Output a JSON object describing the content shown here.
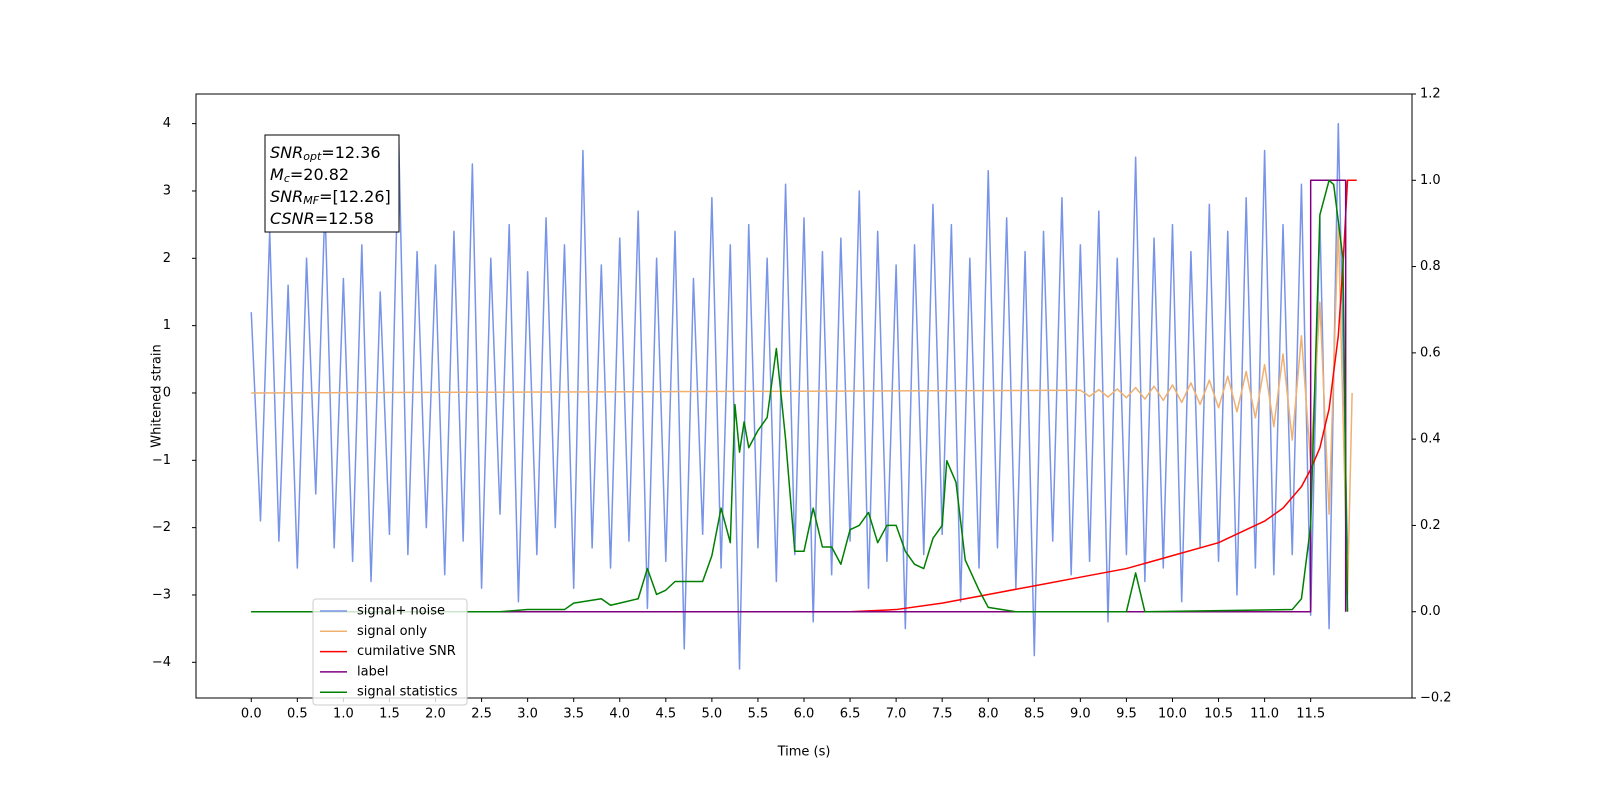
{
  "chart_data": {
    "type": "line",
    "xlabel": "Time (s)",
    "ylabel": "Whitened strain",
    "xlim": [
      -0.6,
      12.6
    ],
    "ylim": [
      -4.53,
      4.44
    ],
    "y2lim": [
      -0.2,
      1.2
    ],
    "xticks": [
      {
        "value": 0,
        "label": "0.0"
      },
      0.5,
      {
        "value": 1,
        "label": "1.0"
      },
      1.5,
      {
        "value": 2,
        "label": "2.0"
      },
      2.5,
      {
        "value": 3,
        "label": "3.0"
      },
      3.5,
      {
        "value": 4,
        "label": "4.0"
      },
      4.5,
      {
        "value": 5,
        "label": "5.0"
      },
      5.5,
      {
        "value": 6,
        "label": "6.0"
      },
      6.5,
      {
        "value": 7,
        "label": "7.0"
      },
      7.5,
      {
        "value": 8,
        "label": "8.0"
      },
      8.5,
      {
        "value": 9,
        "label": "9.0"
      },
      9.5,
      {
        "value": 10,
        "label": "10.0"
      },
      10.5,
      {
        "value": 11,
        "label": "11.0"
      },
      11.5
    ],
    "yticks": [
      {
        "value": -4,
        "label": "−4"
      },
      {
        "value": -3,
        "label": "−3"
      },
      {
        "value": -2,
        "label": "−2"
      },
      {
        "value": -1,
        "label": "−1"
      },
      0,
      1,
      2,
      3,
      4
    ],
    "y2ticks": [
      {
        "value": -0.2,
        "label": "−0.2"
      },
      {
        "value": 0,
        "label": "0.0"
      },
      0.2,
      0.4,
      0.6,
      0.8,
      {
        "value": 1,
        "label": "1.0"
      },
      1.2
    ],
    "annotation": [
      {
        "symbol": "SNR",
        "sub": "opt",
        "text": "=12.36"
      },
      {
        "symbol": "M",
        "sub": "c",
        "text": "=20.82"
      },
      {
        "symbol": "SNR",
        "sub": "MF",
        "text": "=[12.26]"
      },
      {
        "symbol": "CSNR",
        "text": "=12.58"
      }
    ],
    "series": [
      {
        "name": "signal+ noise",
        "color": "#7894e8",
        "axis": "y",
        "x": [
          0.0,
          0.1,
          0.2,
          0.3,
          0.4,
          0.5,
          0.6,
          0.7,
          0.8,
          0.9,
          1.0,
          1.1,
          1.2,
          1.3,
          1.4,
          1.5,
          1.6,
          1.7,
          1.8,
          1.9,
          2.0,
          2.1,
          2.2,
          2.3,
          2.4,
          2.5,
          2.6,
          2.7,
          2.8,
          2.9,
          3.0,
          3.1,
          3.2,
          3.3,
          3.4,
          3.5,
          3.6,
          3.7,
          3.8,
          3.9,
          4.0,
          4.1,
          4.2,
          4.3,
          4.4,
          4.5,
          4.6,
          4.7,
          4.8,
          4.9,
          5.0,
          5.1,
          5.2,
          5.3,
          5.4,
          5.5,
          5.6,
          5.7,
          5.8,
          5.9,
          6.0,
          6.1,
          6.2,
          6.3,
          6.4,
          6.5,
          6.6,
          6.7,
          6.8,
          6.9,
          7.0,
          7.1,
          7.2,
          7.3,
          7.4,
          7.5,
          7.6,
          7.7,
          7.8,
          7.9,
          8.0,
          8.1,
          8.2,
          8.3,
          8.4,
          8.5,
          8.6,
          8.7,
          8.8,
          8.9,
          9.0,
          9.1,
          9.2,
          9.3,
          9.4,
          9.5,
          9.6,
          9.7,
          9.8,
          9.9,
          10.0,
          10.1,
          10.2,
          10.3,
          10.4,
          10.5,
          10.6,
          10.7,
          10.8,
          10.9,
          11.0,
          11.1,
          11.2,
          11.3,
          11.4,
          11.5,
          11.6,
          11.7,
          11.8,
          11.9
        ],
        "values": [
          1.2,
          -1.9,
          2.4,
          -2.2,
          1.6,
          -2.6,
          2.0,
          -1.5,
          2.8,
          -2.3,
          1.7,
          -2.5,
          2.2,
          -2.8,
          1.5,
          -2.1,
          3.8,
          -2.4,
          2.1,
          -2.0,
          1.9,
          -2.7,
          2.4,
          -2.2,
          3.4,
          -2.9,
          2.0,
          -1.8,
          2.5,
          -3.1,
          1.8,
          -2.4,
          2.6,
          -2.0,
          2.2,
          -2.9,
          3.6,
          -2.3,
          1.9,
          -2.6,
          2.3,
          -2.2,
          2.7,
          -3.2,
          2.0,
          -2.5,
          2.4,
          -3.8,
          1.7,
          -2.1,
          2.9,
          -2.6,
          2.2,
          -4.1,
          2.5,
          -2.3,
          2.0,
          -2.8,
          3.1,
          -2.4,
          2.6,
          -3.4,
          2.1,
          -2.7,
          2.3,
          -2.2,
          3.0,
          -2.9,
          2.4,
          -2.5,
          1.9,
          -3.5,
          2.2,
          -2.4,
          2.8,
          -2.1,
          2.5,
          -3.1,
          2.0,
          -2.6,
          3.3,
          -2.3,
          2.6,
          -2.9,
          2.1,
          -3.9,
          2.4,
          -2.2,
          2.9,
          -2.7,
          2.2,
          -2.5,
          2.7,
          -3.4,
          2.0,
          -2.4,
          3.5,
          -2.8,
          2.3,
          -2.6,
          2.5,
          -3.1,
          2.1,
          -2.3,
          2.8,
          -2.5,
          2.4,
          -3.0,
          2.9,
          -2.6,
          3.6,
          -2.7,
          2.5,
          -2.4,
          3.1,
          -3.3,
          2.6,
          -3.5,
          4.0,
          -2.4
        ]
      },
      {
        "name": "signal only",
        "color": "#f0b070",
        "axis": "y",
        "x": [
          0,
          9.0,
          9.1,
          9.2,
          9.3,
          9.4,
          9.5,
          9.6,
          9.7,
          9.8,
          9.9,
          10.0,
          10.1,
          10.2,
          10.3,
          10.4,
          10.5,
          10.6,
          10.7,
          10.8,
          10.9,
          11.0,
          11.1,
          11.2,
          11.3,
          11.4,
          11.5,
          11.6,
          11.7,
          11.8,
          11.9,
          11.95
        ],
        "values": [
          0,
          0.04,
          -0.05,
          0.05,
          -0.06,
          0.06,
          -0.07,
          0.08,
          -0.09,
          0.1,
          -0.11,
          0.12,
          -0.14,
          0.15,
          -0.17,
          0.19,
          -0.22,
          0.25,
          -0.28,
          0.32,
          -0.37,
          0.42,
          -0.5,
          0.58,
          -0.7,
          0.85,
          -1.05,
          1.35,
          -1.8,
          2.5,
          -3.0,
          0
        ]
      },
      {
        "name": "cumilative SNR",
        "color": "#ff0000",
        "axis": "y2",
        "x": [
          0,
          6.5,
          7,
          7.5,
          8,
          8.5,
          9,
          9.5,
          10,
          10.5,
          11,
          11.2,
          11.4,
          11.5,
          11.6,
          11.7,
          11.8,
          11.85,
          11.9,
          12.0
        ],
        "values": [
          0,
          0,
          0.005,
          0.02,
          0.04,
          0.06,
          0.08,
          0.1,
          0.13,
          0.16,
          0.21,
          0.24,
          0.29,
          0.33,
          0.38,
          0.47,
          0.64,
          0.8,
          1.0,
          1.0
        ]
      },
      {
        "name": "label",
        "color": "#800080",
        "axis": "y2",
        "x": [
          0,
          11.5,
          11.5,
          11.88,
          11.88
        ],
        "values": [
          0,
          0,
          1,
          1,
          0
        ]
      },
      {
        "name": "signal statistics",
        "color": "#008000",
        "axis": "y2",
        "x": [
          0,
          2.7,
          3.0,
          3.4,
          3.5,
          3.8,
          3.9,
          4.0,
          4.2,
          4.3,
          4.4,
          4.5,
          4.6,
          4.8,
          4.9,
          5.0,
          5.1,
          5.2,
          5.25,
          5.3,
          5.35,
          5.4,
          5.5,
          5.6,
          5.7,
          5.8,
          5.9,
          6.0,
          6.1,
          6.2,
          6.3,
          6.4,
          6.5,
          6.6,
          6.7,
          6.8,
          6.9,
          7.0,
          7.1,
          7.2,
          7.3,
          7.4,
          7.5,
          7.55,
          7.65,
          7.75,
          7.9,
          8.0,
          8.3,
          9.5,
          9.6,
          9.7,
          11.3,
          11.4,
          11.5,
          11.6,
          11.7,
          11.75,
          11.85,
          11.9
        ],
        "values": [
          0,
          0,
          0.005,
          0.005,
          0.02,
          0.03,
          0.015,
          0.02,
          0.03,
          0.1,
          0.04,
          0.05,
          0.07,
          0.07,
          0.07,
          0.13,
          0.24,
          0.16,
          0.48,
          0.37,
          0.44,
          0.38,
          0.42,
          0.45,
          0.61,
          0.4,
          0.14,
          0.14,
          0.24,
          0.15,
          0.15,
          0.11,
          0.19,
          0.2,
          0.23,
          0.16,
          0.2,
          0.2,
          0.14,
          0.11,
          0.1,
          0.17,
          0.2,
          0.35,
          0.3,
          0.12,
          0.05,
          0.01,
          0,
          0,
          0.09,
          0,
          0.005,
          0.03,
          0.2,
          0.92,
          1.0,
          0.99,
          0.82,
          0
        ]
      }
    ]
  }
}
